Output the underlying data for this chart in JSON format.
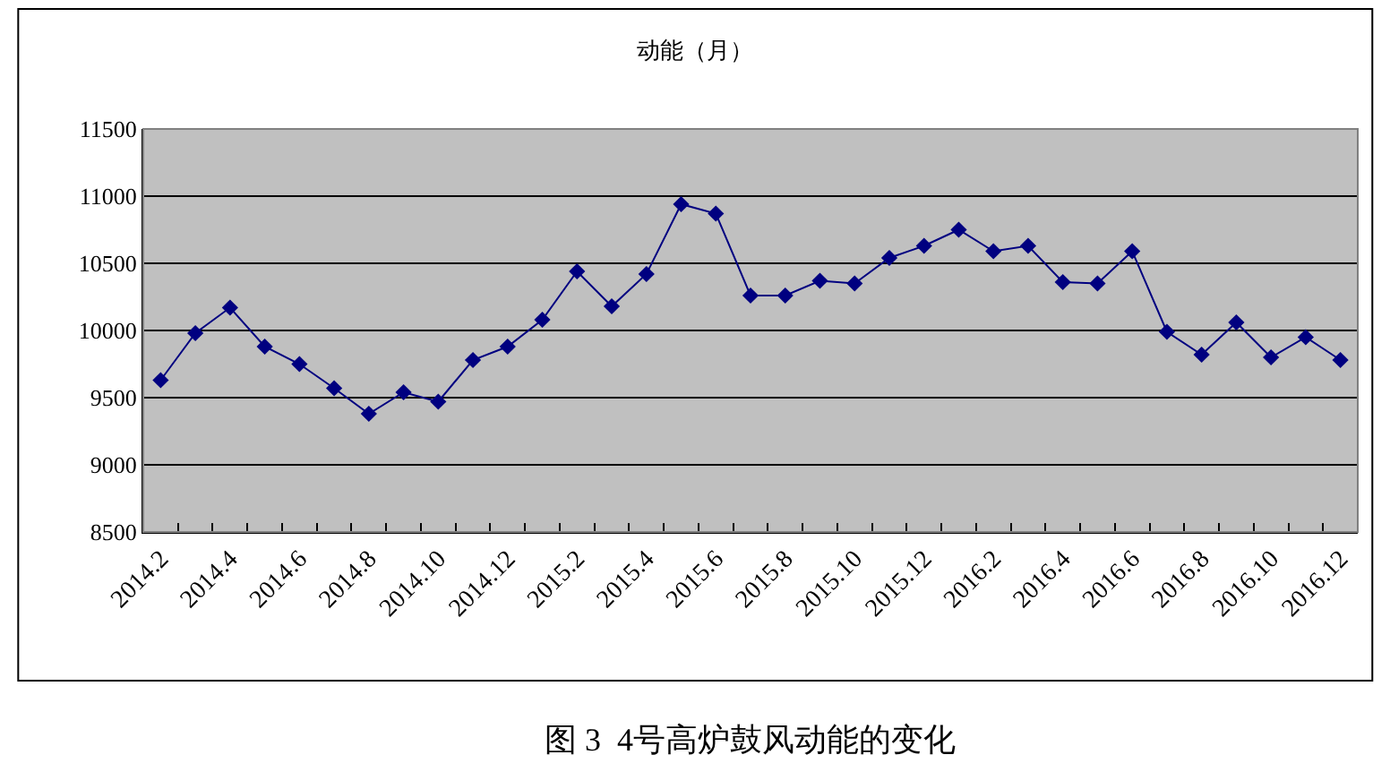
{
  "chart_data": {
    "type": "line",
    "title": "动能（月）",
    "categories": [
      "2014.2",
      null,
      "2014.4",
      null,
      "2014.6",
      null,
      "2014.8",
      null,
      "2014.10",
      null,
      "2014.12",
      null,
      "2015.2",
      null,
      "2015.4",
      null,
      "2015.6",
      null,
      "2015.8",
      null,
      "2015.10",
      null,
      "2015.12",
      null,
      "2016.2",
      null,
      "2016.4",
      null,
      "2016.6",
      null,
      "2016.8",
      null,
      "2016.10",
      null,
      "2016.12"
    ],
    "series": [
      {
        "color": "#000080",
        "values": [
          9630,
          9980,
          10170,
          9880,
          9750,
          9570,
          9380,
          9540,
          9470,
          9780,
          9880,
          10080,
          10440,
          10180,
          10420,
          10940,
          10870,
          10260,
          10260,
          10370,
          10350,
          10540,
          10630,
          10750,
          10590,
          10630,
          10360,
          10350,
          10590,
          9990,
          9820,
          10060,
          9800,
          9950,
          9780
        ]
      }
    ],
    "ylim": [
      8500,
      11500
    ],
    "yticks": [
      8500,
      9000,
      9500,
      10000,
      10500,
      11000,
      11500
    ],
    "grid": "y",
    "marker": "diamond",
    "line_style": "solid",
    "annotations": [
      "图 3  4号高炉鼓风动能的变化"
    ]
  }
}
